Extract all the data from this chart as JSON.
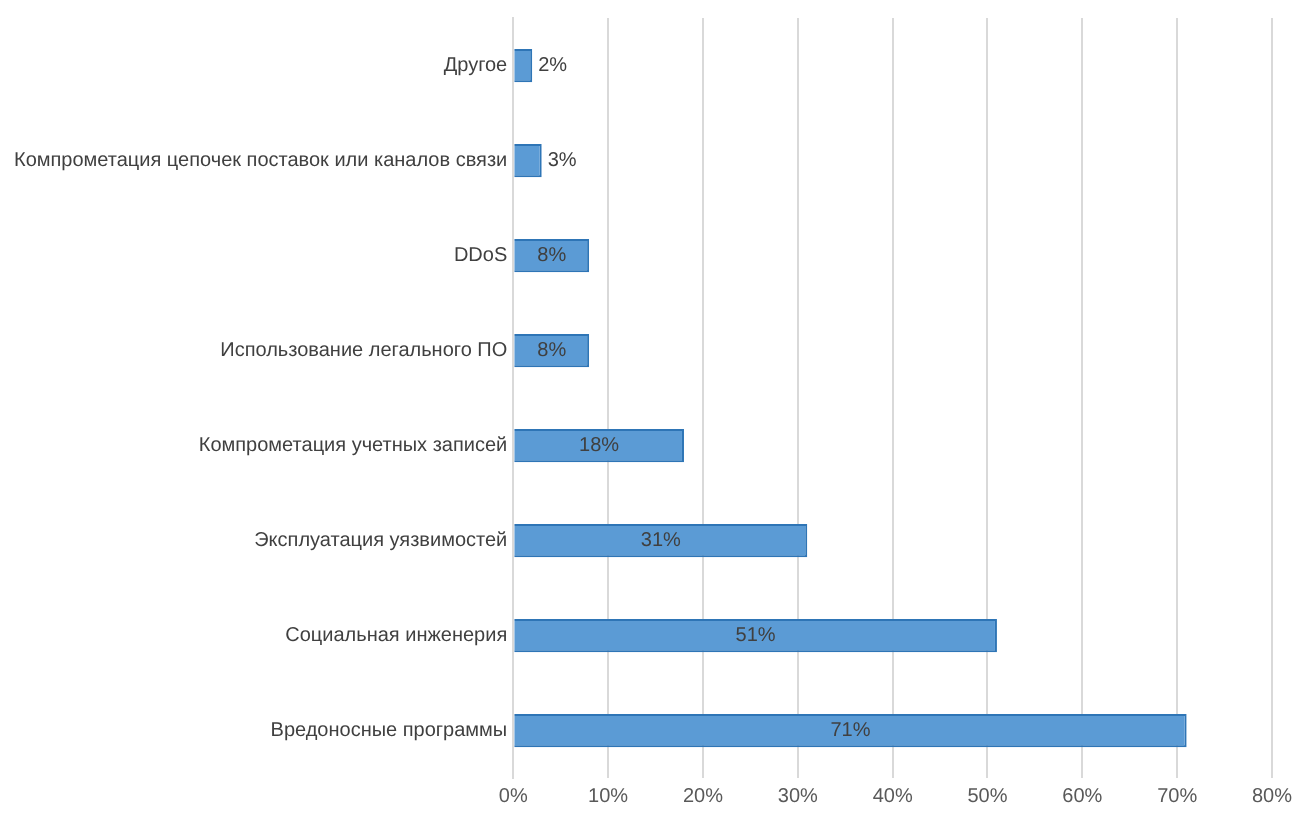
{
  "chart_data": {
    "type": "bar",
    "orientation": "horizontal",
    "categories": [
      "Другое",
      "Компрометация цепочек поставок или каналов связи",
      "DDoS",
      "Использование легального ПО",
      "Компрометация учетных записей",
      "Эксплуатация уязвимостей",
      "Социальная инженерия",
      "Вредоносные программы"
    ],
    "values": [
      2,
      3,
      8,
      8,
      18,
      31,
      51,
      71
    ],
    "value_labels": [
      "2%",
      "3%",
      "8%",
      "8%",
      "18%",
      "31%",
      "51%",
      "71%"
    ],
    "color": "#5b9bd5",
    "xlim": [
      0,
      80
    ],
    "xticks": [
      {
        "value": 0,
        "label": "0%"
      },
      {
        "value": 10,
        "label": "10%"
      },
      {
        "value": 20,
        "label": "20%"
      },
      {
        "value": 30,
        "label": "30%"
      },
      {
        "value": 40,
        "label": "40%"
      },
      {
        "value": 50,
        "label": "50%"
      },
      {
        "value": 60,
        "label": "60%"
      },
      {
        "value": 70,
        "label": "70%"
      },
      {
        "value": 80,
        "label": "80%"
      }
    ],
    "grid": "x",
    "legend": false
  }
}
